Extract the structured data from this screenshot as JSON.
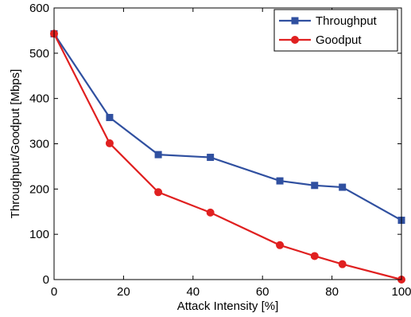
{
  "chart_data": {
    "type": "line",
    "title": "",
    "xlabel": "Attack Intensity [%]",
    "ylabel": "Throughput/Goodput [Mbps]",
    "xlim": [
      0,
      100
    ],
    "ylim": [
      0,
      600
    ],
    "xticks": [
      0,
      20,
      40,
      60,
      80,
      100
    ],
    "yticks": [
      0,
      100,
      200,
      300,
      400,
      500,
      600
    ],
    "grid": false,
    "legend_position": "top-right",
    "series": [
      {
        "name": "Throughput",
        "color": "#3050a0",
        "marker": "square",
        "x": [
          0,
          16,
          30,
          45,
          65,
          75,
          83,
          100
        ],
        "y": [
          543,
          358,
          276,
          270,
          218,
          208,
          204,
          131
        ]
      },
      {
        "name": "Goodput",
        "color": "#e02020",
        "marker": "circle",
        "x": [
          0,
          16,
          30,
          45,
          65,
          75,
          83,
          100
        ],
        "y": [
          543,
          301,
          193,
          148,
          76,
          52,
          34,
          0
        ]
      }
    ]
  }
}
